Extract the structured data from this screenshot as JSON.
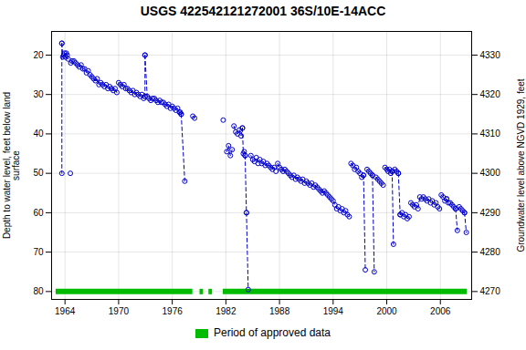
{
  "chart_data": {
    "type": "line",
    "title": "USGS 422542121272001 36S/10E-14ACC",
    "ylabel": "Depth to water level, feet below land\nsurface",
    "y2label": "Groundwater level above NGVD 1929, feet",
    "xlim": [
      1962.5,
      2009.5
    ],
    "xticks": [
      1964,
      1970,
      1976,
      1982,
      1988,
      1994,
      2000,
      2006
    ],
    "ylim": [
      82,
      14
    ],
    "yticks": [
      20,
      30,
      40,
      50,
      60,
      70,
      80
    ],
    "y2lim": [
      4268,
      4336
    ],
    "y2ticks": [
      4270,
      4280,
      4290,
      4300,
      4310,
      4320,
      4330
    ],
    "grid": true,
    "legend": "bottom",
    "series": [
      {
        "type": "line",
        "color": "#0000cc",
        "line_style": "dashed",
        "marker": "circle",
        "segments": [
          {
            "x": [
              1963.65,
              1963.75,
              1963.85,
              1963.95,
              1964.05,
              1964.15,
              1964.25,
              1964.35
            ],
            "values": [
              17.0,
              20.5,
              20.0,
              19.5,
              20.5,
              19.5,
              20.0,
              21.0
            ]
          },
          {
            "x": [
              1963.65,
              1963.65
            ],
            "values": [
              17.0,
              50.0
            ]
          },
          {
            "x": [
              1964.6
            ],
            "values": [
              50.0
            ]
          },
          {
            "x": [
              1964.65,
              1964.8,
              1965.0,
              1965.2,
              1965.4,
              1965.6,
              1965.8,
              1966.0,
              1966.2,
              1966.4,
              1966.6,
              1966.8,
              1967.0,
              1967.2,
              1967.4,
              1967.6,
              1967.8,
              1968.0,
              1968.2,
              1968.4,
              1968.6,
              1968.8,
              1969.0,
              1969.2,
              1969.4,
              1969.6,
              1969.8
            ],
            "values": [
              22.0,
              21.5,
              21.5,
              22.0,
              22.5,
              23.0,
              22.5,
              23.5,
              23.5,
              24.5,
              24.0,
              25.0,
              25.5,
              26.0,
              26.5,
              26.0,
              27.5,
              27.0,
              27.5,
              28.0,
              27.5,
              28.5,
              28.0,
              28.5,
              29.0,
              28.5,
              29.5
            ]
          },
          {
            "x": [
              1970.0,
              1970.2,
              1970.4,
              1970.6,
              1970.8,
              1971.0,
              1971.2,
              1971.4,
              1971.6,
              1971.8,
              1972.0,
              1972.2,
              1972.4,
              1972.6,
              1972.8
            ],
            "values": [
              27.0,
              27.5,
              28.0,
              27.5,
              28.5,
              28.5,
              29.0,
              29.5,
              29.0,
              30.0,
              29.5,
              30.0,
              30.5,
              30.0,
              31.0
            ]
          },
          {
            "x": [
              1972.95,
              1973.2,
              1973.4,
              1973.6,
              1973.8,
              1974.0,
              1974.2,
              1974.4,
              1974.6,
              1974.8,
              1975.0,
              1975.2,
              1975.4,
              1975.6,
              1975.8,
              1976.0,
              1976.2,
              1976.4,
              1976.6,
              1976.8
            ],
            "values": [
              20.0,
              30.5,
              31.0,
              31.5,
              31.0,
              31.0,
              31.5,
              32.0,
              31.5,
              32.0,
              32.0,
              32.5,
              33.0,
              32.5,
              33.5,
              33.0,
              33.5,
              34.0,
              33.5,
              34.5
            ]
          },
          {
            "x": [
              1972.95,
              1972.95
            ],
            "values": [
              20.0,
              30.5
            ]
          },
          {
            "x": [
              1976.9,
              1977.0
            ],
            "values": [
              34.5,
              35.0
            ]
          },
          {
            "x": [
              1977.0,
              1977.4
            ],
            "values": [
              35.0,
              52.0
            ]
          },
          {
            "x": [
              1978.3,
              1978.5
            ],
            "values": [
              35.5,
              36.0
            ]
          },
          {
            "x": [
              1981.7
            ],
            "values": [
              36.5
            ]
          },
          {
            "x": [
              1982.1,
              1982.3,
              1982.5,
              1982.7
            ],
            "values": [
              44.5,
              43.0,
              45.5,
              44.0
            ]
          },
          {
            "x": [
              1982.9,
              1983.1,
              1983.3,
              1983.5,
              1983.7,
              1983.85
            ],
            "values": [
              38.0,
              39.5,
              40.0,
              39.0,
              40.5,
              38.5
            ]
          },
          {
            "x": [
              1983.85,
              1983.95,
              1984.05,
              1984.15
            ],
            "values": [
              38.5,
              45.0,
              44.5,
              45.5
            ]
          },
          {
            "x": [
              1984.15,
              1984.3
            ],
            "values": [
              45.5,
              60.0
            ]
          },
          {
            "x": [
              1984.3,
              1984.5
            ],
            "values": [
              60.0,
              79.5
            ]
          },
          {
            "x": [
              1984.8,
              1985.0,
              1985.2,
              1985.4,
              1985.6,
              1985.8,
              1986.0,
              1986.2,
              1986.4,
              1986.6,
              1986.8,
              1987.0,
              1987.2,
              1987.4,
              1987.6
            ],
            "values": [
              45.5,
              46.5,
              47.0,
              46.0,
              47.5,
              46.5,
              47.5,
              47.0,
              48.0,
              47.5,
              48.0,
              48.5,
              49.0,
              48.5,
              49.5
            ]
          },
          {
            "x": [
              1987.8,
              1988.0,
              1988.2,
              1988.4,
              1988.6,
              1988.8
            ],
            "values": [
              47.5,
              48.5,
              49.0,
              49.5,
              49.0,
              49.5
            ]
          },
          {
            "x": [
              1989.0,
              1989.2,
              1989.4,
              1989.6,
              1989.8,
              1990.0,
              1990.2,
              1990.4,
              1990.6,
              1990.8,
              1991.0,
              1991.2,
              1991.4,
              1991.6,
              1991.8,
              1992.0,
              1992.2,
              1992.4,
              1992.6,
              1992.8,
              1993.0,
              1993.2,
              1993.4,
              1993.6,
              1993.8
            ],
            "values": [
              50.0,
              50.5,
              51.0,
              50.5,
              51.5,
              51.0,
              51.5,
              52.0,
              51.5,
              52.5,
              52.0,
              52.5,
              53.0,
              52.5,
              53.5,
              53.0,
              53.5,
              54.0,
              54.5,
              55.0,
              54.5,
              55.0,
              55.5,
              56.0,
              56.5
            ]
          },
          {
            "x": [
              1994.0,
              1994.2,
              1994.4,
              1994.6,
              1994.8,
              1995.0,
              1995.2,
              1995.4,
              1995.6,
              1995.8
            ],
            "values": [
              57.0,
              58.0,
              59.0,
              58.5,
              59.5,
              59.0,
              60.0,
              59.5,
              60.5,
              61.0
            ]
          },
          {
            "x": [
              1996.0,
              1996.2,
              1996.4,
              1996.6,
              1996.8,
              1997.0,
              1997.2,
              1997.4
            ],
            "values": [
              47.5,
              48.0,
              49.0,
              48.5,
              49.5,
              50.0,
              51.0,
              50.5
            ]
          },
          {
            "x": [
              1997.4,
              1997.6
            ],
            "values": [
              50.5,
              74.5
            ]
          },
          {
            "x": [
              1997.8,
              1998.0,
              1998.2,
              1998.4
            ],
            "values": [
              49.0,
              49.5,
              50.0,
              50.5
            ]
          },
          {
            "x": [
              1998.4,
              1998.6
            ],
            "values": [
              50.5,
              75.0
            ]
          },
          {
            "x": [
              1998.8,
              1999.0,
              1999.2,
              1999.4,
              1999.6
            ],
            "values": [
              51.0,
              51.5,
              52.0,
              52.5,
              53.0
            ]
          },
          {
            "x": [
              1999.8,
              2000.0,
              2000.15,
              2000.3,
              2000.45,
              2000.6
            ],
            "values": [
              48.5,
              49.0,
              49.5,
              49.0,
              50.0,
              49.5
            ]
          },
          {
            "x": [
              2000.6,
              2000.75
            ],
            "values": [
              49.5,
              68.0
            ]
          },
          {
            "x": [
              2000.9,
              2001.1,
              2001.3
            ],
            "values": [
              49.0,
              49.5,
              50.0
            ]
          },
          {
            "x": [
              2001.3,
              2001.5
            ],
            "values": [
              50.0,
              60.5
            ]
          },
          {
            "x": [
              2001.5,
              2001.7,
              2001.9,
              2002.1,
              2002.3,
              2002.5
            ],
            "values": [
              60.5,
              60.0,
              61.0,
              60.5,
              61.5,
              61.0
            ]
          },
          {
            "x": [
              2002.7,
              2002.9,
              2003.1,
              2003.3,
              2003.5,
              2003.7,
              2003.9
            ],
            "values": [
              57.5,
              58.0,
              58.5,
              58.0,
              59.0,
              56.0,
              56.5
            ]
          },
          {
            "x": [
              2004.1,
              2004.3,
              2004.5,
              2004.7,
              2004.9
            ],
            "values": [
              56.0,
              56.5,
              57.0,
              56.5,
              57.5
            ]
          },
          {
            "x": [
              2005.1,
              2005.3,
              2005.5,
              2005.7,
              2005.9
            ],
            "values": [
              57.0,
              58.0,
              57.5,
              58.5,
              59.0
            ]
          },
          {
            "x": [
              2006.1,
              2006.3,
              2006.5,
              2006.7
            ],
            "values": [
              55.5,
              56.0,
              57.0,
              56.5
            ]
          },
          {
            "x": [
              2006.7,
              2006.9
            ],
            "values": [
              56.5,
              57.5
            ]
          },
          {
            "x": [
              2007.1,
              2007.3,
              2007.5,
              2007.7
            ],
            "values": [
              57.5,
              58.0,
              58.5,
              59.0
            ]
          },
          {
            "x": [
              2007.7,
              2007.9
            ],
            "values": [
              59.0,
              64.5
            ]
          },
          {
            "x": [
              2008.1,
              2008.3,
              2008.5,
              2008.7
            ],
            "values": [
              58.5,
              59.0,
              59.5,
              60.0
            ]
          },
          {
            "x": [
              2008.7,
              2008.9
            ],
            "values": [
              60.0,
              65.0
            ]
          }
        ]
      },
      {
        "type": "bar",
        "name": "Period of approved data",
        "color": "#00bb00",
        "y": 80,
        "spans": [
          [
            1963.0,
            1978.3
          ],
          [
            1979.1,
            1979.5
          ],
          [
            1980.1,
            1980.5
          ],
          [
            1981.7,
            2009.0
          ]
        ]
      }
    ]
  }
}
